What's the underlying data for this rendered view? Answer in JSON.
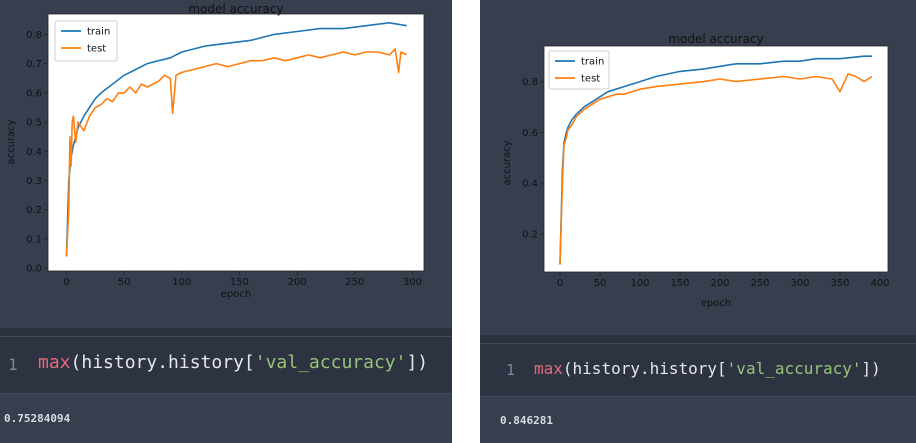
{
  "chart_data": [
    {
      "type": "line",
      "title": "model accuracy",
      "xlabel": "epoch",
      "ylabel": "accuracy",
      "xlim": [
        -16,
        310
      ],
      "ylim": [
        -0.01,
        0.87
      ],
      "xticks": [
        0,
        50,
        100,
        150,
        200,
        250,
        300
      ],
      "yticks": [
        0.0,
        0.1,
        0.2,
        0.3,
        0.4,
        0.5,
        0.6,
        0.7,
        0.8
      ],
      "legend": "top-left",
      "grid": false,
      "series": [
        {
          "name": "train",
          "color": "#1f77b4",
          "x": [
            0,
            2,
            4,
            6,
            8,
            10,
            15,
            20,
            25,
            30,
            40,
            50,
            60,
            70,
            80,
            90,
            100,
            120,
            140,
            160,
            180,
            200,
            220,
            240,
            260,
            280,
            295
          ],
          "y": [
            0.04,
            0.3,
            0.38,
            0.42,
            0.45,
            0.48,
            0.52,
            0.55,
            0.58,
            0.6,
            0.63,
            0.66,
            0.68,
            0.7,
            0.71,
            0.72,
            0.74,
            0.76,
            0.77,
            0.78,
            0.8,
            0.81,
            0.82,
            0.82,
            0.83,
            0.84,
            0.83
          ]
        },
        {
          "name": "test",
          "color": "#ff7f0e",
          "x": [
            0,
            2,
            3,
            4,
            5,
            6,
            8,
            10,
            15,
            20,
            25,
            30,
            35,
            40,
            45,
            50,
            55,
            60,
            65,
            70,
            75,
            80,
            85,
            90,
            92,
            95,
            100,
            110,
            120,
            130,
            140,
            150,
            160,
            170,
            180,
            190,
            200,
            210,
            220,
            230,
            240,
            250,
            260,
            270,
            280,
            285,
            288,
            290,
            295
          ],
          "y": [
            0.04,
            0.2,
            0.45,
            0.35,
            0.5,
            0.52,
            0.43,
            0.5,
            0.47,
            0.52,
            0.55,
            0.56,
            0.58,
            0.57,
            0.6,
            0.6,
            0.62,
            0.6,
            0.63,
            0.62,
            0.63,
            0.64,
            0.66,
            0.65,
            0.53,
            0.66,
            0.67,
            0.68,
            0.69,
            0.7,
            0.69,
            0.7,
            0.71,
            0.71,
            0.72,
            0.71,
            0.72,
            0.73,
            0.72,
            0.73,
            0.74,
            0.73,
            0.74,
            0.74,
            0.73,
            0.75,
            0.67,
            0.74,
            0.73
          ]
        }
      ]
    },
    {
      "type": "line",
      "title": "model accuracy",
      "xlabel": "epoch",
      "ylabel": "accuracy",
      "xlim": [
        -20,
        410
      ],
      "ylim": [
        0.05,
        0.94
      ],
      "xticks": [
        0,
        50,
        100,
        150,
        200,
        250,
        300,
        350,
        400
      ],
      "yticks": [
        0.2,
        0.4,
        0.6,
        0.8
      ],
      "legend": "top-left",
      "grid": false,
      "series": [
        {
          "name": "train",
          "color": "#1f77b4",
          "x": [
            0,
            3,
            5,
            8,
            10,
            15,
            20,
            30,
            40,
            50,
            60,
            70,
            80,
            100,
            120,
            150,
            180,
            200,
            220,
            250,
            280,
            300,
            320,
            350,
            380,
            390
          ],
          "y": [
            0.08,
            0.45,
            0.56,
            0.6,
            0.62,
            0.65,
            0.67,
            0.7,
            0.72,
            0.74,
            0.76,
            0.77,
            0.78,
            0.8,
            0.82,
            0.84,
            0.85,
            0.86,
            0.87,
            0.87,
            0.88,
            0.88,
            0.89,
            0.89,
            0.9,
            0.9
          ]
        },
        {
          "name": "test",
          "color": "#ff7f0e",
          "x": [
            0,
            3,
            5,
            8,
            10,
            15,
            20,
            30,
            40,
            50,
            60,
            70,
            80,
            100,
            120,
            150,
            180,
            200,
            220,
            250,
            280,
            300,
            320,
            340,
            350,
            360,
            370,
            380,
            390
          ],
          "y": [
            0.08,
            0.4,
            0.55,
            0.58,
            0.61,
            0.63,
            0.66,
            0.69,
            0.71,
            0.73,
            0.74,
            0.75,
            0.75,
            0.77,
            0.78,
            0.79,
            0.8,
            0.81,
            0.8,
            0.81,
            0.82,
            0.81,
            0.82,
            0.81,
            0.76,
            0.83,
            0.82,
            0.8,
            0.82
          ]
        }
      ]
    }
  ],
  "cells": {
    "left": {
      "line_number": "1",
      "fn": "max",
      "open": "(history.history[",
      "arg": "'val_accuracy'",
      "close": "])",
      "output": "0.75284094"
    },
    "right": {
      "line_number": "1",
      "fn": "max",
      "open": "(history.history[",
      "arg": "'val_accuracy'",
      "close": "])",
      "output": "0.846281"
    }
  }
}
